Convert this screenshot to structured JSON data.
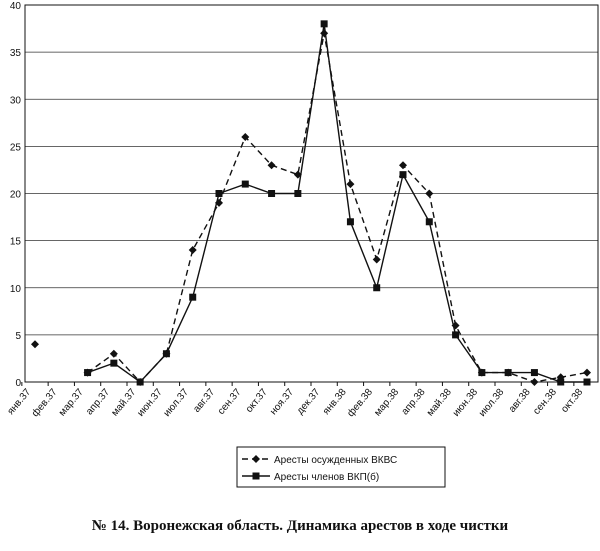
{
  "chart_data": {
    "type": "line",
    "title": "№ 14. Воронежская область. Динамика арестов в ходе чистки",
    "categories": [
      "янв.37",
      "фев.37",
      "мар.37",
      "апр.37",
      "май.37",
      "июн.37",
      "июл.37",
      "авг.37",
      "сен.37",
      "окт.37",
      "ноя.37",
      "дек.37",
      "янв.38",
      "фев.38",
      "мар.38",
      "апр.38",
      "май.38",
      "июн.38",
      "июл.38",
      "авг.38",
      "сен.38",
      "окт.38"
    ],
    "series": [
      {
        "name": "Аресты осужденных ВКВС",
        "color": "#111111",
        "dash": true,
        "marker": "diamond",
        "values": [
          4,
          null,
          1,
          3,
          0,
          3,
          14,
          19,
          26,
          23,
          22,
          37,
          21,
          13,
          23,
          20,
          6,
          1,
          1,
          0,
          0.5,
          1
        ]
      },
      {
        "name": "Аресты членов ВКП(б)",
        "color": "#111111",
        "dash": false,
        "marker": "square",
        "values": [
          null,
          null,
          1,
          2,
          0,
          3,
          9,
          20,
          21,
          20,
          20,
          38,
          17,
          10,
          22,
          17,
          5,
          1,
          1,
          1,
          0,
          0
        ]
      }
    ],
    "ylim": [
      0,
      40
    ],
    "yticks": [
      0,
      5,
      10,
      15,
      20,
      25,
      30,
      35,
      40
    ],
    "grid": true
  }
}
